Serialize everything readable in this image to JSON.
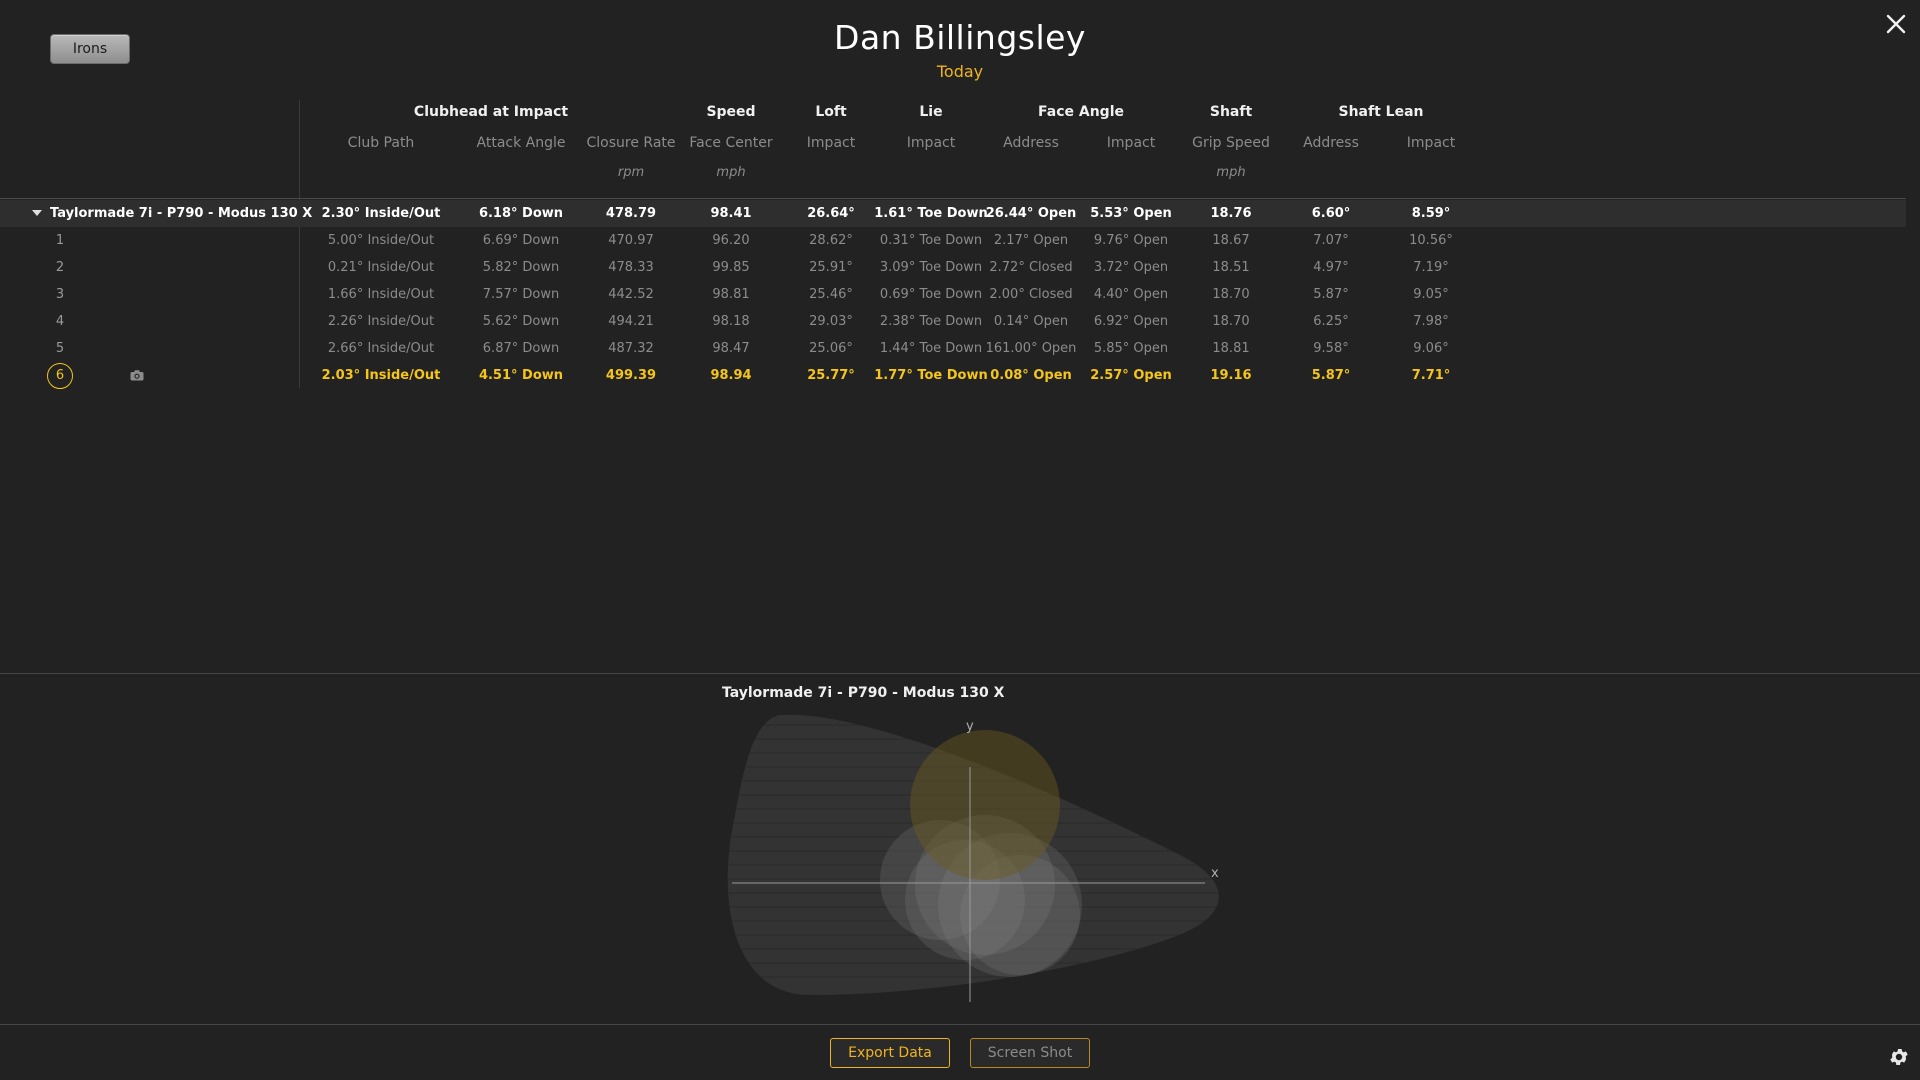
{
  "toolbar": {
    "club_filter_label": "Irons"
  },
  "header": {
    "player_name": "Dan Billingsley",
    "session_label": "Today"
  },
  "table": {
    "groups": [
      "Clubhead at Impact",
      "Speed",
      "Loft",
      "Lie",
      "Face Angle",
      "Shaft",
      "Shaft Lean"
    ],
    "subheaders": [
      "Club Path",
      "Attack Angle",
      "Closure Rate",
      "Face Center",
      "Impact",
      "Impact",
      "Address",
      "Impact",
      "Grip Speed",
      "Address",
      "Impact"
    ],
    "units": [
      "",
      "",
      "rpm",
      "mph",
      "",
      "",
      "",
      "",
      "mph",
      "",
      ""
    ],
    "summary": {
      "label": "Taylormade 7i - P790 -  Modus 130 X",
      "values": [
        "2.30° Inside/Out",
        "6.18° Down",
        "478.79",
        "98.41",
        "26.64°",
        "1.61° Toe Down",
        "26.44° Open",
        "5.53° Open",
        "18.76",
        "6.60°",
        "8.59°"
      ]
    },
    "shots": [
      {
        "num": "1",
        "values": [
          "5.00° Inside/Out",
          "6.69° Down",
          "470.97",
          "96.20",
          "28.62°",
          "0.31° Toe Down",
          "2.17° Open",
          "9.76° Open",
          "18.67",
          "7.07°",
          "10.56°"
        ]
      },
      {
        "num": "2",
        "values": [
          "0.21° Inside/Out",
          "5.82° Down",
          "478.33",
          "99.85",
          "25.91°",
          "3.09° Toe Down",
          "2.72° Closed",
          "3.72° Open",
          "18.51",
          "4.97°",
          "7.19°"
        ]
      },
      {
        "num": "3",
        "values": [
          "1.66° Inside/Out",
          "7.57° Down",
          "442.52",
          "98.81",
          "25.46°",
          "0.69° Toe Down",
          "2.00° Closed",
          "4.40° Open",
          "18.70",
          "5.87°",
          "9.05°"
        ]
      },
      {
        "num": "4",
        "values": [
          "2.26° Inside/Out",
          "5.62° Down",
          "494.21",
          "98.18",
          "29.03°",
          "2.38° Toe Down",
          "0.14° Open",
          "6.92° Open",
          "18.70",
          "6.25°",
          "7.98°"
        ]
      },
      {
        "num": "5",
        "values": [
          "2.66° Inside/Out",
          "6.87° Down",
          "487.32",
          "98.47",
          "25.06°",
          "1.44° Toe Down",
          "161.00° Open",
          "5.85° Open",
          "18.81",
          "9.58°",
          "9.06°"
        ]
      },
      {
        "num": "6",
        "values": [
          "2.03° Inside/Out",
          "4.51° Down",
          "499.39",
          "98.94",
          "25.77°",
          "1.77° Toe Down",
          "0.08° Open",
          "2.57° Open",
          "19.16",
          "5.87°",
          "7.71°"
        ],
        "selected": true
      }
    ]
  },
  "impact_panel": {
    "title": "Taylormade 7i - P790 -  Modus 130 X",
    "x_label": "x",
    "y_label": "y"
  },
  "footer": {
    "export_label": "Export Data",
    "screenshot_label": "Screen Shot"
  },
  "colors": {
    "accent": "#f0b41e",
    "highlight": "#f5c518",
    "background": "#222222"
  },
  "icons": [
    "close-icon",
    "triangle-down-icon",
    "camera-icon",
    "gear-icon"
  ]
}
